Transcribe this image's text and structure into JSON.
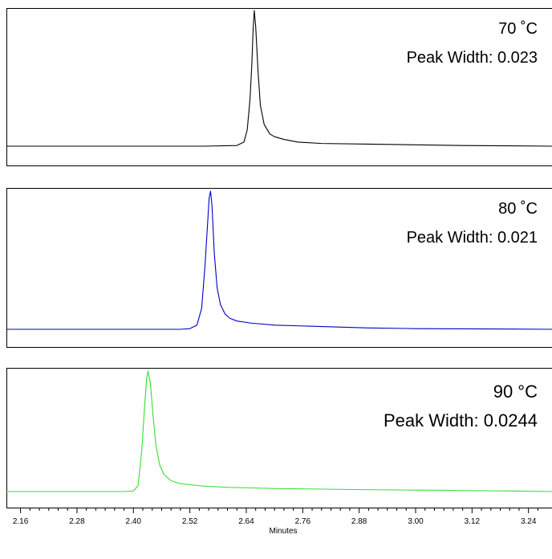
{
  "chart_data": {
    "type": "line",
    "xlabel": "Minutes",
    "xlim": [
      2.13,
      3.29
    ],
    "xticks": [
      "2.16",
      "2.28",
      "2.40",
      "2.52",
      "2.64",
      "2.76",
      "2.88",
      "3.00",
      "3.12",
      "3.24"
    ],
    "panels": [
      {
        "name": "70 °C",
        "label_line1": "70 ˚C",
        "label_line2": "Peak Width: 0.023",
        "color": "#000000",
        "series": {
          "x": [
            2.13,
            2.5,
            2.55,
            2.62,
            2.635,
            2.642,
            2.648,
            2.652,
            2.6545,
            2.657,
            2.66,
            2.665,
            2.67,
            2.678,
            2.69,
            2.7,
            2.72,
            2.75,
            2.8,
            2.9,
            3.0,
            3.1,
            3.29
          ],
          "y": [
            0.0,
            0.0,
            0.0,
            0.005,
            0.03,
            0.12,
            0.35,
            0.62,
            0.86,
            1.0,
            0.88,
            0.55,
            0.3,
            0.16,
            0.09,
            0.07,
            0.05,
            0.03,
            0.02,
            0.015,
            0.01,
            0.005,
            0.0
          ]
        }
      },
      {
        "name": "80 °C",
        "label_line1": "80 ˚C",
        "label_line2": "Peak Width: 0.021",
        "color": "#0000c8",
        "series": {
          "x": [
            2.13,
            2.5,
            2.52,
            2.535,
            2.545,
            2.552,
            2.558,
            2.561,
            2.564,
            2.567,
            2.572,
            2.578,
            2.585,
            2.595,
            2.605,
            2.62,
            2.65,
            2.7,
            2.8,
            2.9,
            3.0,
            3.29
          ],
          "y": [
            0.0,
            0.0,
            0.005,
            0.03,
            0.15,
            0.45,
            0.78,
            0.95,
            1.0,
            0.9,
            0.55,
            0.3,
            0.18,
            0.11,
            0.08,
            0.06,
            0.045,
            0.03,
            0.02,
            0.01,
            0.005,
            0.0
          ]
        }
      },
      {
        "name": "90 °C",
        "label_line1": "90 °C",
        "label_line2": "Peak Width: 0.0244",
        "color": "#33dd33",
        "series": {
          "x": [
            2.13,
            2.38,
            2.4,
            2.41,
            2.418,
            2.424,
            2.428,
            2.431,
            2.436,
            2.442,
            2.448,
            2.456,
            2.465,
            2.48,
            2.5,
            2.55,
            2.6,
            2.7,
            2.8,
            2.9,
            3.0,
            3.08,
            3.29
          ],
          "y": [
            0.0,
            0.0,
            0.005,
            0.05,
            0.35,
            0.72,
            0.93,
            1.0,
            0.9,
            0.62,
            0.38,
            0.22,
            0.14,
            0.09,
            0.065,
            0.045,
            0.035,
            0.025,
            0.02,
            0.015,
            0.012,
            0.01,
            0.0
          ]
        }
      }
    ]
  }
}
